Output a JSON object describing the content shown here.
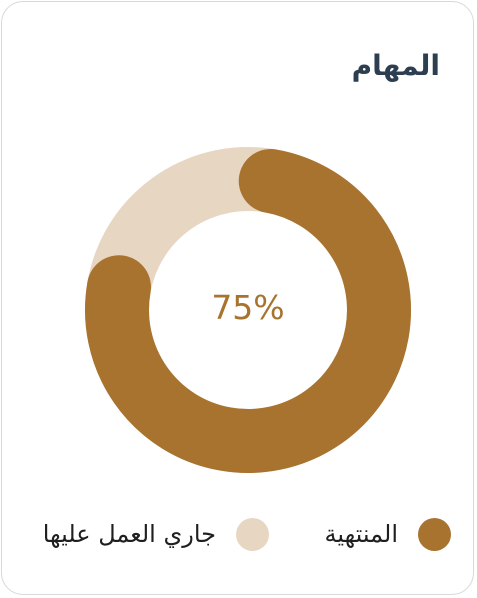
{
  "card": {
    "title": "المهام"
  },
  "chart_data": {
    "type": "donut",
    "title": "المهام",
    "center_label": "75%",
    "slices": [
      {
        "name": "المنتهية",
        "value": 75,
        "color": "#a8722f"
      },
      {
        "name": "جاري العمل عليها",
        "value": 25,
        "color": "#e7d6c2"
      }
    ]
  },
  "legend": [
    {
      "label": "المنتهية",
      "color": "#a8722f"
    },
    {
      "label": "جاري العمل عليها",
      "color": "#e7d6c2"
    }
  ]
}
